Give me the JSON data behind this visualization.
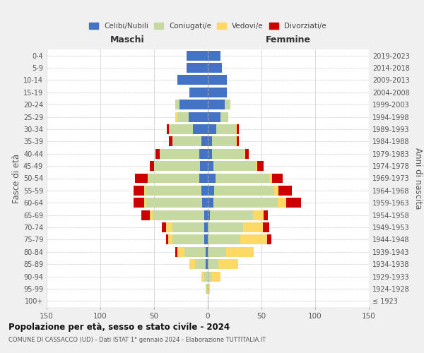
{
  "age_groups": [
    "100+",
    "95-99",
    "90-94",
    "85-89",
    "80-84",
    "75-79",
    "70-74",
    "65-69",
    "60-64",
    "55-59",
    "50-54",
    "45-49",
    "40-44",
    "35-39",
    "30-34",
    "25-29",
    "20-24",
    "15-19",
    "10-14",
    "5-9",
    "0-4"
  ],
  "birth_years": [
    "≤ 1923",
    "1924-1928",
    "1929-1933",
    "1934-1938",
    "1939-1943",
    "1944-1948",
    "1949-1953",
    "1954-1958",
    "1959-1963",
    "1964-1968",
    "1969-1973",
    "1974-1978",
    "1979-1983",
    "1984-1988",
    "1989-1993",
    "1994-1998",
    "1999-2003",
    "2004-2008",
    "2009-2013",
    "2014-2018",
    "2019-2023"
  ],
  "male": {
    "celibi": [
      0,
      0,
      0,
      2,
      2,
      3,
      3,
      3,
      5,
      6,
      8,
      7,
      8,
      6,
      14,
      18,
      26,
      17,
      28,
      20,
      20
    ],
    "coniugati": [
      0,
      1,
      3,
      10,
      20,
      30,
      30,
      48,
      52,
      52,
      47,
      43,
      37,
      27,
      22,
      10,
      4,
      0,
      0,
      0,
      0
    ],
    "vedovi": [
      0,
      1,
      3,
      5,
      6,
      4,
      6,
      3,
      2,
      1,
      1,
      0,
      0,
      0,
      0,
      2,
      0,
      0,
      0,
      0,
      0
    ],
    "divorziati": [
      0,
      0,
      0,
      0,
      2,
      2,
      4,
      8,
      10,
      10,
      12,
      4,
      4,
      3,
      2,
      0,
      0,
      0,
      0,
      0,
      0
    ]
  },
  "female": {
    "nubili": [
      0,
      0,
      0,
      0,
      0,
      0,
      0,
      2,
      5,
      6,
      7,
      5,
      4,
      4,
      8,
      12,
      16,
      18,
      18,
      13,
      12
    ],
    "coniugate": [
      0,
      0,
      3,
      10,
      17,
      30,
      33,
      40,
      60,
      56,
      50,
      40,
      30,
      22,
      18,
      7,
      5,
      0,
      0,
      0,
      0
    ],
    "vedove": [
      0,
      2,
      9,
      18,
      26,
      25,
      18,
      10,
      8,
      4,
      3,
      1,
      1,
      1,
      1,
      0,
      0,
      0,
      0,
      0,
      0
    ],
    "divorziate": [
      0,
      0,
      0,
      0,
      0,
      4,
      6,
      4,
      14,
      12,
      10,
      6,
      3,
      2,
      2,
      0,
      0,
      0,
      0,
      0,
      0
    ]
  },
  "colors": {
    "celibi": "#4472c4",
    "coniugati": "#c5d9a0",
    "vedovi": "#ffd966",
    "divorziati": "#cc0000"
  },
  "xlim": 150,
  "title": "Popolazione per età, sesso e stato civile - 2024",
  "subtitle": "COMUNE DI CASSACCO (UD) - Dati ISTAT 1° gennaio 2024 - Elaborazione TUTTITALIA.IT",
  "ylabel_left": "Fasce di età",
  "ylabel_right": "Anni di nascita",
  "xlabel_left": "Maschi",
  "xlabel_right": "Femmine",
  "bg_color": "#f0f0f0",
  "plot_bg_color": "#ffffff"
}
